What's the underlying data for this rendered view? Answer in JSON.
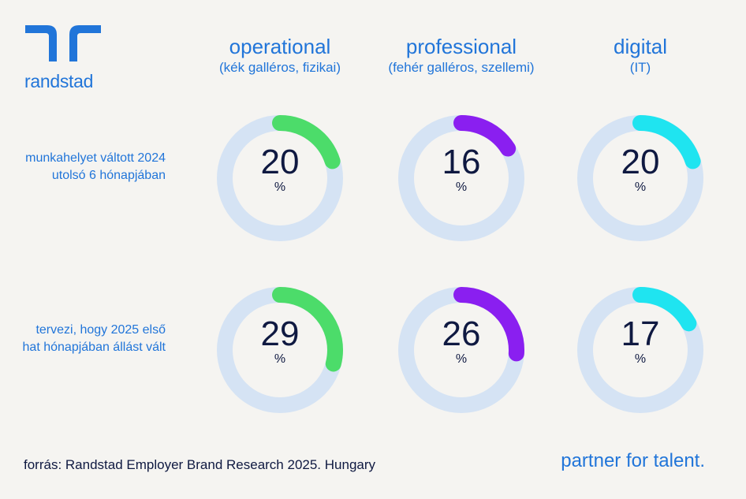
{
  "brand": {
    "name": "randstad",
    "tagline": "partner for talent.",
    "color": "#2175d9"
  },
  "columns": [
    {
      "title": "operational",
      "subtitle": "(kék galléros, fizikai)",
      "color": "#4cdc6a"
    },
    {
      "title": "professional",
      "subtitle": "(fehér galléros, szellemi)",
      "color": "#8a1ff0"
    },
    {
      "title": "digital",
      "subtitle": "(IT)",
      "color": "#1fe4f0"
    }
  ],
  "rows": [
    {
      "label": "munkahelyet váltott 2024 utolsó 6 hónapjában"
    },
    {
      "label": "tervezi, hogy 2025 első hat hónapjában állást vált"
    }
  ],
  "chart_data": {
    "type": "donut",
    "unit": "%",
    "track_color": "#d5e3f4",
    "categories": [
      "operational",
      "professional",
      "digital"
    ],
    "series": [
      {
        "name": "munkahelyet váltott 2024 utolsó 6 hónapjában",
        "values": [
          20,
          16,
          20
        ]
      },
      {
        "name": "tervezi, hogy 2025 első hat hónapjában állást vált",
        "values": [
          29,
          26,
          17
        ]
      }
    ]
  },
  "footer": {
    "source": "forrás: Randstad Employer Brand Research 2025. Hungary"
  }
}
